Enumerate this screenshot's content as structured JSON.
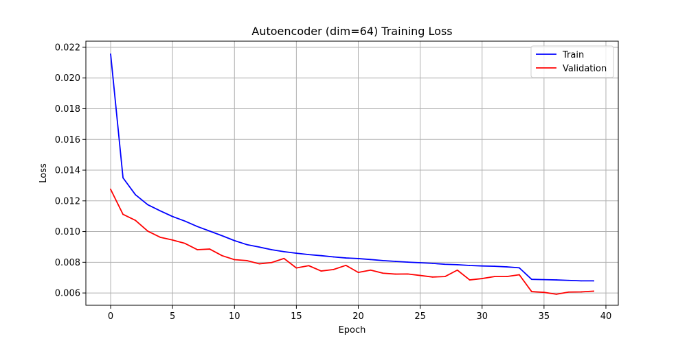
{
  "chart_data": {
    "type": "line",
    "title": "Autoencoder (dim=64) Training Loss",
    "xlabel": "Epoch",
    "ylabel": "Loss",
    "xlim": [
      -2,
      41
    ],
    "ylim": [
      0.0052,
      0.0224
    ],
    "xticks": [
      0,
      5,
      10,
      15,
      20,
      25,
      30,
      35,
      40
    ],
    "yticks": [
      0.006,
      0.008,
      0.01,
      0.012,
      0.014,
      0.016,
      0.018,
      0.02,
      0.022
    ],
    "ytick_labels": [
      "0.006",
      "0.008",
      "0.010",
      "0.012",
      "0.014",
      "0.016",
      "0.018",
      "0.020",
      "0.022"
    ],
    "grid": true,
    "legend_position": "top-right",
    "x": [
      0,
      1,
      2,
      3,
      4,
      5,
      6,
      7,
      8,
      9,
      10,
      11,
      12,
      13,
      14,
      15,
      16,
      17,
      18,
      19,
      20,
      21,
      22,
      23,
      24,
      25,
      26,
      27,
      28,
      29,
      30,
      31,
      32,
      33,
      34,
      35,
      36,
      37,
      38,
      39
    ],
    "series": [
      {
        "name": "Train",
        "color": "#0000ff",
        "values": [
          0.02155,
          0.0135,
          0.0124,
          0.01175,
          0.01135,
          0.01098,
          0.01068,
          0.01033,
          0.01003,
          0.00973,
          0.00941,
          0.00915,
          0.00899,
          0.00882,
          0.00869,
          0.00859,
          0.0085,
          0.00843,
          0.00835,
          0.00828,
          0.00824,
          0.00818,
          0.00811,
          0.00806,
          0.00801,
          0.00797,
          0.00793,
          0.00787,
          0.00784,
          0.00779,
          0.00776,
          0.00774,
          0.0077,
          0.00764,
          0.00689,
          0.00687,
          0.00685,
          0.00682,
          0.00679,
          0.00679
        ]
      },
      {
        "name": "Validation",
        "color": "#ff0000",
        "values": [
          0.01275,
          0.01112,
          0.01073,
          0.01003,
          0.00963,
          0.00945,
          0.00923,
          0.00882,
          0.00886,
          0.00843,
          0.00817,
          0.00811,
          0.0079,
          0.00798,
          0.00825,
          0.00763,
          0.00778,
          0.00743,
          0.00753,
          0.0078,
          0.00734,
          0.00749,
          0.00729,
          0.00723,
          0.00724,
          0.00714,
          0.00704,
          0.00707,
          0.00749,
          0.00685,
          0.00694,
          0.00707,
          0.00707,
          0.00719,
          0.00609,
          0.00604,
          0.00592,
          0.00606,
          0.00607,
          0.00612
        ]
      }
    ]
  }
}
